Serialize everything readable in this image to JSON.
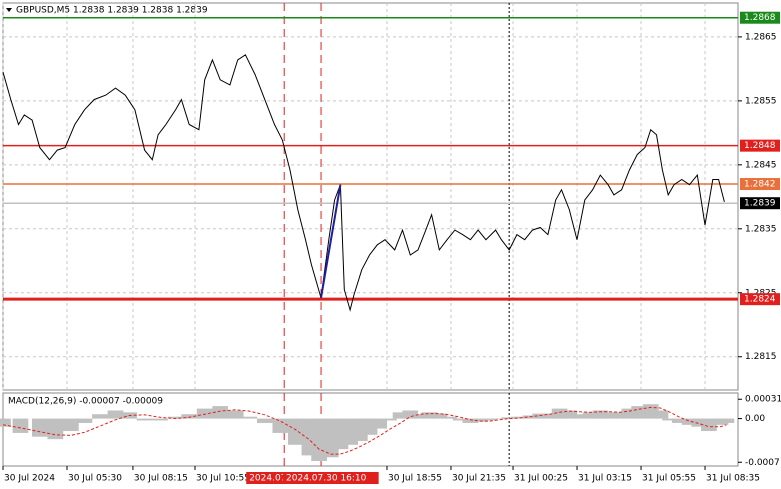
{
  "chart_data": {
    "type": "line",
    "title": "GBPUSD,M5  1.2838 1.2839 1.2838 1.2839",
    "grid": true,
    "xlim": [
      0,
      379
    ],
    "ylim": [
      1.28098,
      1.28703
    ],
    "yticks": [
      1.2865,
      1.2855,
      1.2845,
      1.2835,
      1.2825,
      1.2815
    ],
    "xticks": [
      {
        "value": 0,
        "label": "30 Jul 2024"
      },
      {
        "value": 33,
        "label": "30 Jul 05:30"
      },
      {
        "value": 67,
        "label": "30 Jul 08:15"
      },
      {
        "value": 99,
        "label": "30 Jul 10:55"
      },
      {
        "value": 198,
        "label": "30 Jul 18:55"
      },
      {
        "value": 231,
        "label": "30 Jul 21:35"
      },
      {
        "value": 263,
        "label": "31 Jul 00:25"
      },
      {
        "value": 296,
        "label": "31 Jul 03:15"
      },
      {
        "value": 329,
        "label": "31 Jul 05:55"
      },
      {
        "value": 362,
        "label": "31 Jul 08:35"
      }
    ],
    "series": [
      {
        "color": "#000000",
        "x": [
          0,
          4,
          8,
          11,
          15,
          19,
          24,
          28,
          32,
          37,
          42,
          47,
          53,
          58,
          63,
          68,
          73,
          77,
          80,
          84,
          89,
          92,
          96,
          101,
          104,
          108,
          112,
          117,
          121,
          125,
          130,
          135,
          140,
          144,
          148,
          152,
          156,
          159,
          164,
          168,
          171,
          174,
          176,
          179,
          181,
          185,
          189,
          193,
          197,
          202,
          206,
          210,
          214,
          218,
          221,
          225,
          229,
          233,
          237,
          241,
          245,
          249,
          254,
          257,
          261,
          265,
          269,
          273,
          277,
          281,
          285,
          288,
          292,
          296,
          300,
          304,
          308,
          312,
          315,
          319,
          323,
          327,
          331,
          334,
          337,
          340,
          343,
          346,
          350,
          354,
          358,
          362,
          366,
          369,
          372
        ],
        "values": [
          1.28595,
          1.28552,
          1.28513,
          1.28528,
          1.2852,
          1.28477,
          1.28458,
          1.28473,
          1.28477,
          1.28513,
          1.28536,
          1.28552,
          1.28559,
          1.2857,
          1.28559,
          1.28536,
          1.28473,
          1.28458,
          1.28497,
          1.28513,
          1.28536,
          1.28552,
          1.28513,
          1.28505,
          1.28583,
          1.28614,
          1.28583,
          1.28575,
          1.28614,
          1.28622,
          1.28591,
          1.28552,
          1.28513,
          1.28489,
          1.28442,
          1.2838,
          1.28333,
          1.28294,
          1.28242,
          1.28333,
          1.28395,
          1.28419,
          1.28255,
          1.28223,
          1.28247,
          1.28286,
          1.28309,
          1.28325,
          1.28333,
          1.28317,
          1.28348,
          1.28309,
          1.28317,
          1.28348,
          1.28372,
          1.28317,
          1.28333,
          1.28348,
          1.28341,
          1.28333,
          1.28348,
          1.28333,
          1.28348,
          1.28333,
          1.28317,
          1.28341,
          1.28333,
          1.28348,
          1.28352,
          1.28341,
          1.28395,
          1.28411,
          1.2838,
          1.28333,
          1.28395,
          1.28411,
          1.28434,
          1.28419,
          1.28403,
          1.28411,
          1.28442,
          1.28466,
          1.28477,
          1.28505,
          1.28497,
          1.28442,
          1.28403,
          1.28419,
          1.28427,
          1.28419,
          1.28434,
          1.28356,
          1.28427,
          1.28427,
          1.28392
        ]
      },
      {
        "color": "#1f1f9e",
        "x": [
          164,
          174
        ],
        "values": [
          1.28242,
          1.28419
        ]
      }
    ],
    "levels": [
      {
        "value": 1.2868,
        "color": "#1a8a1a"
      },
      {
        "value": 1.2848,
        "color": "#e0201c"
      },
      {
        "value": 1.2842,
        "color": "#e8703a"
      },
      {
        "value": 1.2839,
        "color": "#c0c0c0",
        "label_color": "#000000"
      },
      {
        "value": 1.2824,
        "color": "#e0201c",
        "width": 3
      }
    ],
    "vlines": [
      {
        "value": 145,
        "label": "2024.07",
        "color": "#e0201c",
        "style": "dashed"
      },
      {
        "value": 164,
        "label": "2024.07.30 16:10",
        "color": "#e0201c",
        "style": "dashed"
      },
      {
        "value": 261,
        "color": "#000000",
        "style": "dotted"
      }
    ],
    "macd": {
      "title": "MACD(12,26,9) -0.00007 -0.00009",
      "ylim": [
        -0.00076,
        0.00041
      ],
      "yticks": [
        0.00031,
        {
          "value": 0,
          "label": "0.00"
        },
        -0.0007
      ],
      "hist_color": "#c0c0c0",
      "signal_color": "#e0201c",
      "x": [
        0,
        9,
        19,
        27,
        35,
        42,
        50,
        58,
        65,
        73,
        81,
        89,
        96,
        104,
        112,
        120,
        127,
        135,
        143,
        151,
        158,
        163,
        169,
        174,
        179,
        184,
        189,
        194,
        199,
        205,
        210,
        215,
        220,
        225,
        230,
        236,
        241,
        246,
        251,
        256,
        261,
        266,
        272,
        277,
        282,
        287,
        292,
        297,
        303,
        308,
        313,
        318,
        323,
        328,
        334,
        339,
        344,
        349,
        354,
        359,
        364,
        370,
        373
      ],
      "histogram": [
        -0.00013,
        -0.00023,
        -0.00029,
        -0.00033,
        -0.0002,
        -7e-05,
        7e-05,
        0.00013,
        0.0001,
        -3e-05,
        -3e-05,
        3e-05,
        7e-05,
        0.00016,
        0.0002,
        0.00013,
        3e-05,
        -7e-05,
        -0.00023,
        -0.00042,
        -0.00059,
        -0.00068,
        -0.00062,
        -0.00049,
        -0.00042,
        -0.00036,
        -0.00026,
        -0.00016,
        -3e-05,
        0.0001,
        0.00013,
        7e-05,
        0.0001,
        8e-05,
        3e-05,
        -3e-05,
        -7e-05,
        -5e-05,
        -3e-05,
        0,
        2e-05,
        3e-05,
        5e-05,
        8e-05,
        8e-05,
        0.00016,
        0.00013,
        7e-05,
        0.0001,
        0.00013,
        0.0001,
        0.0001,
        0.00016,
        0.0002,
        0.00023,
        0.00013,
        -3e-05,
        -7e-05,
        -0.0001,
        -0.00013,
        -0.0002,
        -0.0001,
        -7e-05
      ],
      "signal": [
        -0.0001,
        -0.00015,
        -0.00021,
        -0.00026,
        -0.00027,
        -0.00022,
        -0.00012,
        -2e-05,
        5e-05,
        6e-05,
        2e-05,
        0,
        2e-05,
        7e-05,
        0.00012,
        0.00014,
        0.00012,
        6e-05,
        -4e-05,
        -0.00018,
        -0.00034,
        -0.00049,
        -0.00057,
        -0.00057,
        -0.00052,
        -0.00045,
        -0.00037,
        -0.00028,
        -0.00018,
        -7e-05,
        3e-05,
        7e-05,
        8e-05,
        8e-05,
        6e-05,
        2e-05,
        -2e-05,
        -4e-05,
        -4e-05,
        -2e-05,
        0,
        1e-05,
        3e-05,
        5e-05,
        7e-05,
        0.0001,
        0.00012,
        0.00011,
        0.0001,
        0.00011,
        0.00011,
        0.0001,
        0.00012,
        0.00015,
        0.00018,
        0.00017,
        0.0001,
        2e-05,
        -4e-05,
        -8e-05,
        -0.00013,
        -0.00013,
        -0.0001
      ]
    }
  }
}
